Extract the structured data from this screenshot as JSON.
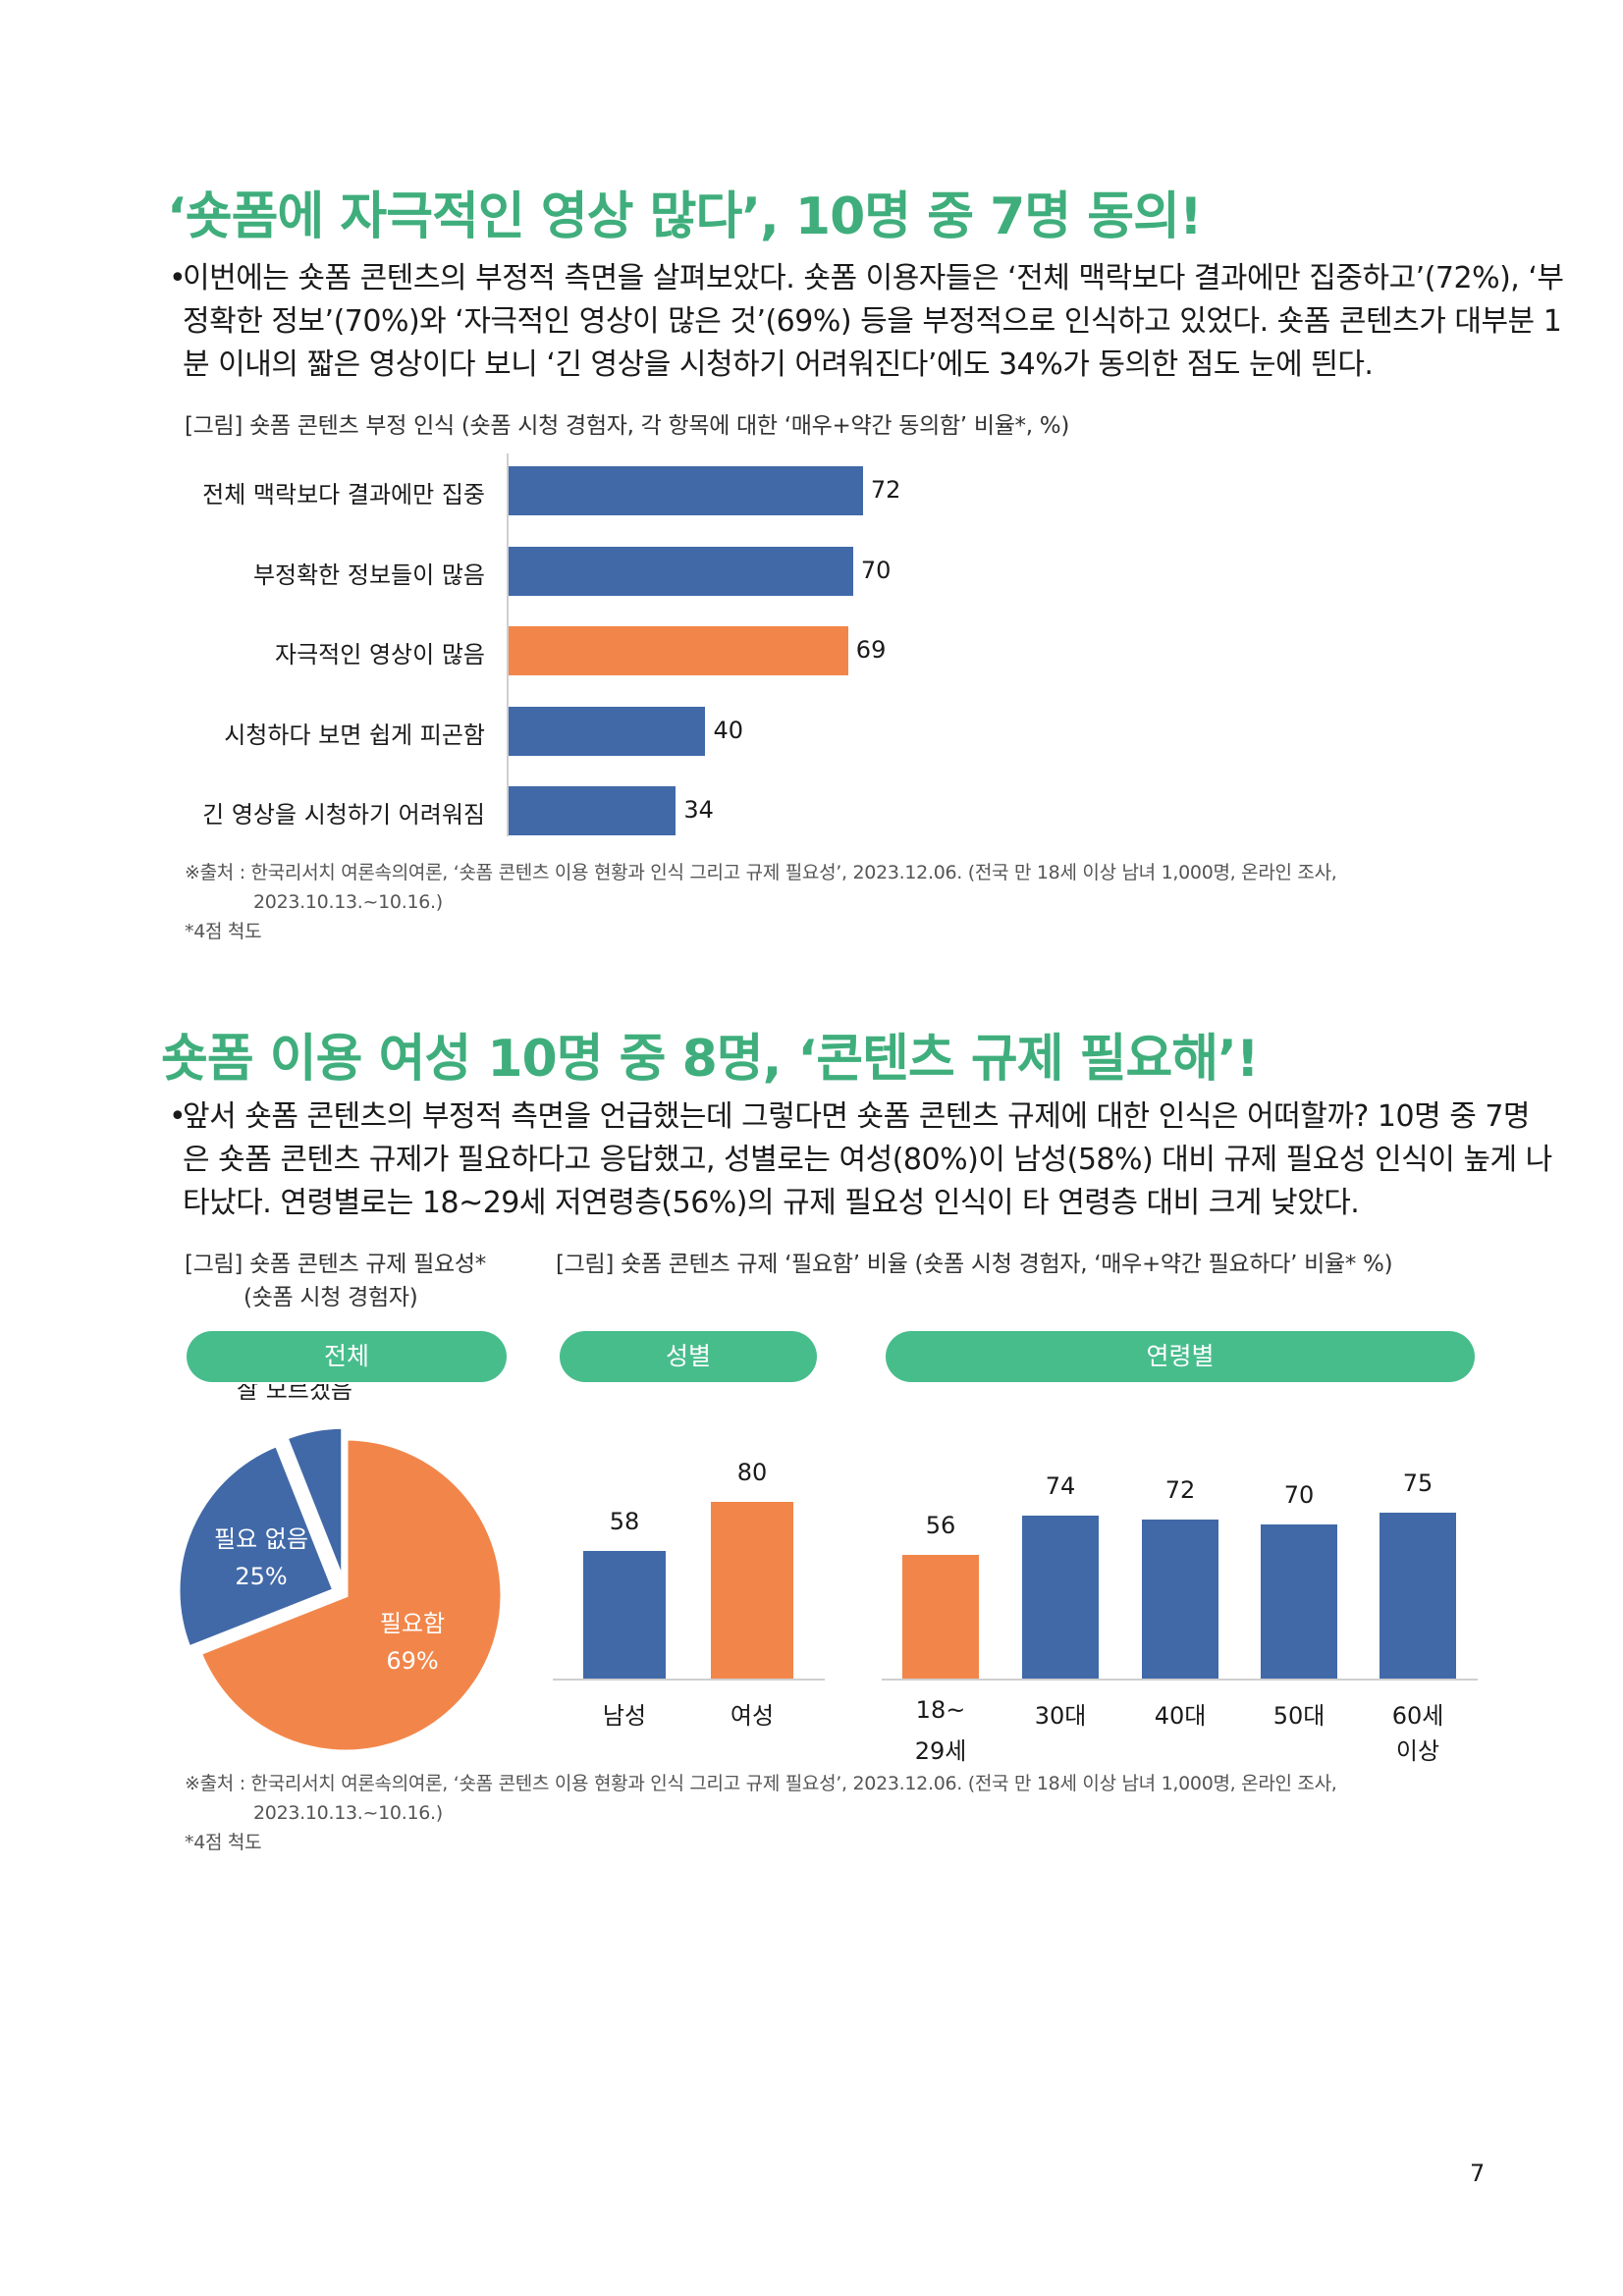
{
  "section1": {
    "heading": "‘숏폼에 자극적인 영상 많다’, 10명 중 7명 동의!",
    "bullet": "•",
    "body_lines": [
      "이번에는 숏폼 콘텐츠의 부정적 측면을 살펴보았다. 숏폼 이용자들은 ‘전체 맥락보다 결과에만 집중하고’(72%), ‘부",
      "정확한 정보’(70%)와 ‘자극적인 영상이 많은 것’(69%) 등을 부정적으로 인식하고 있었다. 숏폼 콘텐츠가 대부분 1",
      "분 이내의 짧은 영상이다 보니 ‘긴 영상을 시청하기 어려워진다’에도 34%가 동의한 점도 눈에 띈다."
    ],
    "caption": "[그림] 숏폼 콘텐츠 부정 인식 (숏폼 시청 경험자, 각 항목에 대한 ‘매우+약간 동의함’ 비율*, %)",
    "source_line1": "※출처 : 한국리서치 여론속의여론, ‘숏폼 콘텐츠 이용 현황과 인식 그리고 규제 필요성’, 2023.12.06. (전국 만 18세 이상 남녀 1,000명, 온라인 조사,",
    "source_line2": "2023.10.13.~10.16.)",
    "footnote": "*4점 척도"
  },
  "chart_data": [
    {
      "type": "bar",
      "orientation": "horizontal",
      "categories": [
        "전체 맥락보다 결과에만 집중",
        "부정확한 정보들이 많음",
        "자극적인 영상이 많음",
        "시청하다 보면 쉽게 피곤함",
        "긴 영상을 시청하기 어려워짐"
      ],
      "values": [
        72,
        70,
        69,
        40,
        34
      ],
      "highlight_index": 2,
      "colors": {
        "default": "#4169a8",
        "highlight": "#f2864a"
      },
      "xlim": [
        0,
        100
      ],
      "grid": false
    },
    {
      "type": "pie",
      "labels": [
        "필요함",
        "필요 없음",
        "잘 모르겠음"
      ],
      "values": [
        69,
        25,
        6
      ],
      "value_labels": [
        "69%",
        "25%",
        "6%"
      ],
      "colors": [
        "#f2864a",
        "#4169a8",
        "#4169a8"
      ]
    },
    {
      "type": "bar",
      "categories": [
        "남성",
        "여성"
      ],
      "values": [
        58,
        80
      ],
      "colors": [
        "#4169a8",
        "#f2864a"
      ],
      "ylim": [
        0,
        100
      ]
    },
    {
      "type": "bar",
      "categories": [
        [
          "18~",
          "29세"
        ],
        [
          "30대"
        ],
        [
          "40대"
        ],
        [
          "50대"
        ],
        [
          "60세",
          "이상"
        ]
      ],
      "values": [
        56,
        74,
        72,
        70,
        75
      ],
      "colors": [
        "#f2864a",
        "#4169a8",
        "#4169a8",
        "#4169a8",
        "#4169a8"
      ],
      "ylim": [
        0,
        100
      ]
    }
  ],
  "section2": {
    "heading": "숏폼 이용 여성 10명 중 8명, ‘콘텐츠 규제 필요해’!",
    "bullet": "•",
    "body_lines": [
      "앞서 숏폼 콘텐츠의 부정적 측면을 언급했는데 그렇다면 숏폼 콘텐츠 규제에 대한 인식은 어떠할까? 10명 중 7명",
      "은 숏폼 콘텐츠 규제가 필요하다고 응답했고, 성별로는 여성(80%)이 남성(58%) 대비 규제 필요성 인식이 높게 나",
      "타났다. 연령별로는 18~29세 저연령층(56%)의 규제 필요성 인식이 타 연령층 대비 크게 낮았다."
    ],
    "caption_left_line1": "[그림] 숏폼 콘텐츠 규제 필요성*",
    "caption_left_line2": "(숏폼 시청 경험자)",
    "caption_right": "[그림] 숏폼 콘텐츠 규제 ‘필요함’ 비율 (숏폼 시청 경험자, ‘매우+약간 필요하다’ 비율* %)",
    "pill_total": "전체",
    "pill_gender": "성별",
    "pill_age": "연령별",
    "source_line1": "※출처 : 한국리서치 여론속의여론, ‘숏폼 콘텐츠 이용 현황과 인식 그리고 규제 필요성’, 2023.12.06. (전국 만 18세 이상 남녀 1,000명, 온라인 조사,",
    "source_line2": "2023.10.13.~10.16.)",
    "footnote": "*4점 척도"
  },
  "page_number": "7"
}
